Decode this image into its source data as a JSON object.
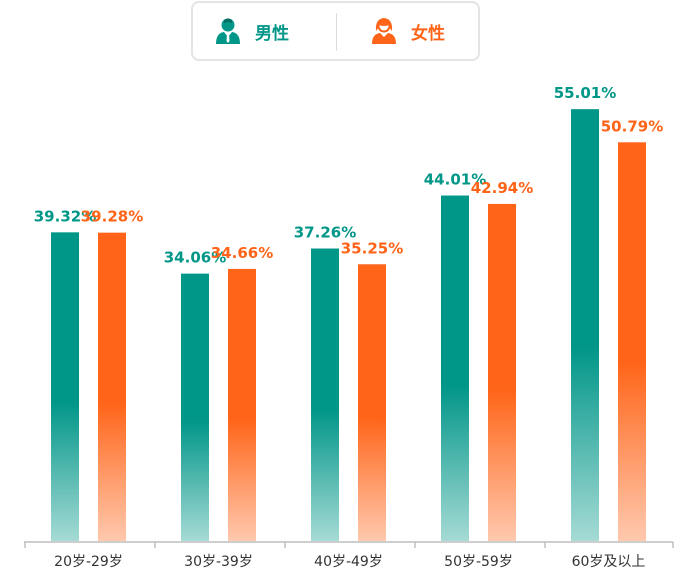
{
  "legend": {
    "male_label": "男性",
    "female_label": "女性",
    "male_icon": "male-user-icon",
    "female_icon": "female-user-icon"
  },
  "colors": {
    "male": "#009688",
    "female": "#ff6418",
    "axis": "#bdbdbd"
  },
  "chart_data": {
    "type": "bar",
    "categories": [
      "20岁-29岁",
      "30岁-39岁",
      "40岁-49岁",
      "50岁-59岁",
      "60岁及以上"
    ],
    "series": [
      {
        "name": "男性",
        "values": [
          39.32,
          34.06,
          37.26,
          44.01,
          55.01
        ],
        "labels": [
          "39.32%",
          "34.06%",
          "37.26%",
          "44.01%",
          "55.01%"
        ]
      },
      {
        "name": "女性",
        "values": [
          39.28,
          34.66,
          35.25,
          42.94,
          50.79
        ],
        "labels": [
          "39.28%",
          "34.66%",
          "35.25%",
          "42.94%",
          "50.79%"
        ]
      }
    ],
    "title": "",
    "xlabel": "",
    "ylabel": "",
    "grid": false,
    "legend_position": "top-center"
  }
}
